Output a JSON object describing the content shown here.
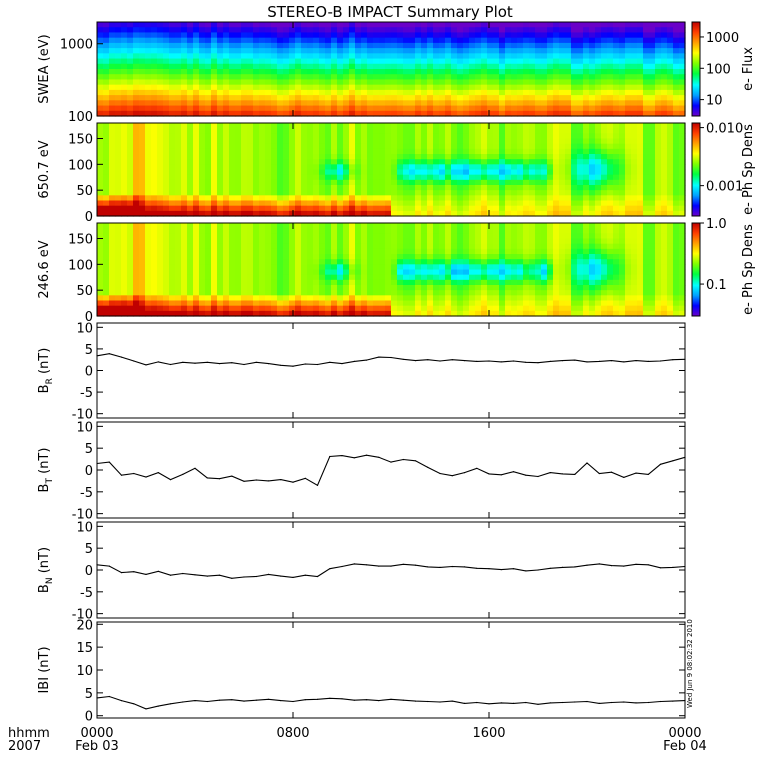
{
  "title": "STEREO-B IMPACT Summary Plot",
  "stamp": "Wed Jun  9 08:02:32 2010",
  "time_axis": {
    "row_label_1": "hhmm",
    "row_label_2": "2007",
    "ticks": [
      {
        "hours": 0,
        "label": "0000",
        "date": "Feb 03"
      },
      {
        "hours": 8,
        "label": "0800",
        "date": ""
      },
      {
        "hours": 16,
        "label": "1600",
        "date": ""
      },
      {
        "hours": 24,
        "label": "0000",
        "date": "Feb 04"
      }
    ],
    "range_hours": [
      0,
      24
    ]
  },
  "colors": {
    "line": "#000000",
    "colorbar": [
      "#6a00c8",
      "#0000ff",
      "#00a0ff",
      "#00ffff",
      "#00ff40",
      "#80ff00",
      "#ffff00",
      "#ffa000",
      "#ff4000",
      "#c00000"
    ]
  },
  "chart_data": [
    {
      "type": "heatmap",
      "ylabel": "SWEA (eV)",
      "yscale": "log",
      "ylim": [
        100,
        2000
      ],
      "yticks": [
        "100",
        "1000"
      ],
      "colorbar": {
        "label": "e- Flux",
        "scale": "log",
        "ticks": [
          "10",
          "100",
          "1000"
        ],
        "range": [
          3,
          3000
        ]
      }
    },
    {
      "type": "heatmap",
      "ylabel": "650.7 eV",
      "ylim": [
        0,
        180
      ],
      "yticks": [
        "0",
        "50",
        "100",
        "150"
      ],
      "colorbar": {
        "label": "e- Ph Sp Dens",
        "scale": "log",
        "ticks": [
          "0.001",
          "0.010"
        ],
        "range": [
          0.0003,
          0.012
        ]
      }
    },
    {
      "type": "heatmap",
      "ylabel": "246.6 eV",
      "ylim": [
        0,
        180
      ],
      "yticks": [
        "0",
        "50",
        "100",
        "150"
      ],
      "colorbar": {
        "label": "e- Ph Sp Dens",
        "scale": "log",
        "ticks": [
          "0.1",
          "1.0"
        ],
        "range": [
          0.03,
          1.0
        ]
      }
    },
    {
      "type": "line",
      "ylabel_main": "B",
      "ylabel_sub": "R",
      "ylabel_unit": " (nT)",
      "ylim": [
        -11,
        11
      ],
      "yticks": [
        "-10",
        "-5",
        "0",
        "5",
        "10"
      ],
      "x": [
        0,
        0.5,
        1,
        1.5,
        2,
        2.5,
        3,
        3.5,
        4,
        4.5,
        5,
        5.5,
        6,
        6.5,
        7,
        7.5,
        8,
        8.5,
        9,
        9.5,
        10,
        10.5,
        11,
        11.5,
        12,
        12.5,
        13,
        13.5,
        14,
        14.5,
        15,
        15.5,
        16,
        16.5,
        17,
        17.5,
        18,
        18.5,
        19,
        19.5,
        20,
        20.5,
        21,
        21.5,
        22,
        22.5,
        23,
        23.5,
        24
      ],
      "y": [
        3.4,
        3.9,
        3.1,
        2.2,
        1.3,
        2.0,
        1.4,
        1.9,
        1.7,
        1.9,
        1.6,
        1.8,
        1.4,
        1.9,
        1.6,
        1.2,
        1.0,
        1.5,
        1.4,
        1.9,
        1.6,
        2.1,
        2.4,
        3.1,
        3.0,
        2.6,
        2.3,
        2.5,
        2.2,
        2.5,
        2.3,
        2.1,
        2.2,
        2.0,
        2.2,
        1.9,
        1.8,
        2.1,
        2.3,
        2.4,
        2.0,
        2.1,
        2.3,
        2.0,
        2.3,
        2.1,
        2.2,
        2.5,
        2.6
      ]
    },
    {
      "type": "line",
      "ylabel_main": "B",
      "ylabel_sub": "T",
      "ylabel_unit": " (nT)",
      "ylim": [
        -11,
        11
      ],
      "yticks": [
        "-10",
        "-5",
        "0",
        "5",
        "10"
      ],
      "x": [
        0,
        0.5,
        1,
        1.5,
        2,
        2.5,
        3,
        3.5,
        4,
        4.5,
        5,
        5.5,
        6,
        6.5,
        7,
        7.5,
        8,
        8.5,
        9,
        9.5,
        10,
        10.5,
        11,
        11.5,
        12,
        12.5,
        13,
        13.5,
        14,
        14.5,
        15,
        15.5,
        16,
        16.5,
        17,
        17.5,
        18,
        18.5,
        19,
        19.5,
        20,
        20.5,
        21,
        21.5,
        22,
        22.5,
        23,
        23.5,
        24
      ],
      "y": [
        1.5,
        1.8,
        -1.2,
        -0.8,
        -1.6,
        -0.6,
        -2.2,
        -1.0,
        0.4,
        -1.8,
        -2.0,
        -1.4,
        -2.6,
        -2.3,
        -2.5,
        -2.2,
        -2.8,
        -1.9,
        -3.5,
        3.1,
        3.3,
        2.8,
        3.4,
        2.9,
        1.8,
        2.4,
        2.1,
        0.6,
        -0.8,
        -1.3,
        -0.6,
        0.4,
        -0.9,
        -1.1,
        -0.4,
        -1.2,
        -1.5,
        -0.6,
        -0.9,
        -1.0,
        1.6,
        -0.8,
        -0.5,
        -1.7,
        -0.7,
        -1.0,
        1.3,
        2.1,
        2.9
      ]
    },
    {
      "type": "line",
      "ylabel_main": "B",
      "ylabel_sub": "N",
      "ylabel_unit": " (nT)",
      "ylim": [
        -11,
        11
      ],
      "yticks": [
        "-10",
        "-5",
        "0",
        "5",
        "10"
      ],
      "x": [
        0,
        0.5,
        1,
        1.5,
        2,
        2.5,
        3,
        3.5,
        4,
        4.5,
        5,
        5.5,
        6,
        6.5,
        7,
        7.5,
        8,
        8.5,
        9,
        9.5,
        10,
        10.5,
        11,
        11.5,
        12,
        12.5,
        13,
        13.5,
        14,
        14.5,
        15,
        15.5,
        16,
        16.5,
        17,
        17.5,
        18,
        18.5,
        19,
        19.5,
        20,
        20.5,
        21,
        21.5,
        22,
        22.5,
        23,
        23.5,
        24
      ],
      "y": [
        1.2,
        0.9,
        -0.6,
        -0.4,
        -1.0,
        -0.3,
        -1.2,
        -0.8,
        -1.1,
        -1.4,
        -1.2,
        -1.9,
        -1.6,
        -1.5,
        -1.0,
        -1.4,
        -1.7,
        -1.2,
        -1.5,
        0.3,
        0.8,
        1.4,
        1.2,
        0.9,
        0.9,
        1.3,
        1.1,
        0.7,
        0.6,
        0.8,
        0.7,
        0.4,
        0.3,
        0.1,
        0.3,
        -0.2,
        0.0,
        0.4,
        0.6,
        0.7,
        1.1,
        1.4,
        1.0,
        0.9,
        1.3,
        1.2,
        0.5,
        0.6,
        0.8
      ]
    },
    {
      "type": "line",
      "ylabel_main": "IBI",
      "ylabel_sub": "",
      "ylabel_unit": " (nT)",
      "ylim": [
        -0.5,
        20.5
      ],
      "yticks": [
        "0",
        "5",
        "10",
        "15",
        "20"
      ],
      "x": [
        0,
        0.5,
        1,
        1.5,
        2,
        2.5,
        3,
        3.5,
        4,
        4.5,
        5,
        5.5,
        6,
        6.5,
        7,
        7.5,
        8,
        8.5,
        9,
        9.5,
        10,
        10.5,
        11,
        11.5,
        12,
        12.5,
        13,
        13.5,
        14,
        14.5,
        15,
        15.5,
        16,
        16.5,
        17,
        17.5,
        18,
        18.5,
        19,
        19.5,
        20,
        20.5,
        21,
        21.5,
        22,
        22.5,
        23,
        23.5,
        24
      ],
      "y": [
        3.9,
        4.2,
        3.3,
        2.6,
        1.5,
        2.1,
        2.6,
        3.0,
        3.3,
        3.1,
        3.4,
        3.5,
        3.2,
        3.4,
        3.6,
        3.3,
        3.1,
        3.5,
        3.6,
        3.8,
        3.7,
        3.4,
        3.5,
        3.3,
        3.6,
        3.4,
        3.2,
        3.1,
        3.0,
        3.2,
        2.7,
        2.9,
        2.6,
        2.8,
        2.7,
        2.9,
        2.5,
        2.8,
        2.9,
        3.0,
        3.1,
        2.7,
        2.9,
        3.0,
        2.8,
        2.9,
        3.1,
        3.2,
        3.3
      ]
    }
  ]
}
